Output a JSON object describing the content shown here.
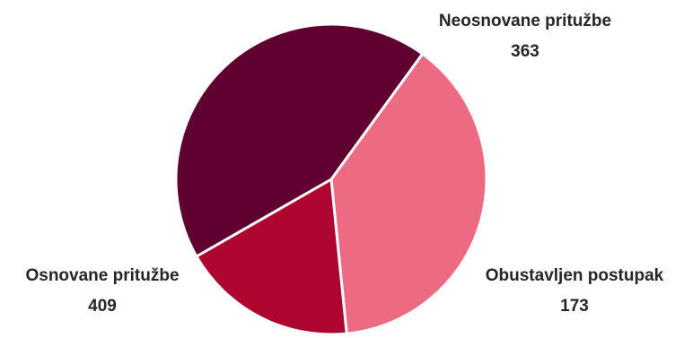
{
  "chart_data": {
    "type": "pie",
    "title": "",
    "slices": [
      {
        "label": "Neosnovane pritužbe",
        "value": 363,
        "color": "#ED6B82"
      },
      {
        "label": "Obustavljen postupak",
        "value": 173,
        "color": "#AD0530"
      },
      {
        "label": "Osnovane pritužbe",
        "value": 409,
        "color": "#600031"
      }
    ],
    "legend": "none",
    "data_labels": "category and value, outside"
  }
}
